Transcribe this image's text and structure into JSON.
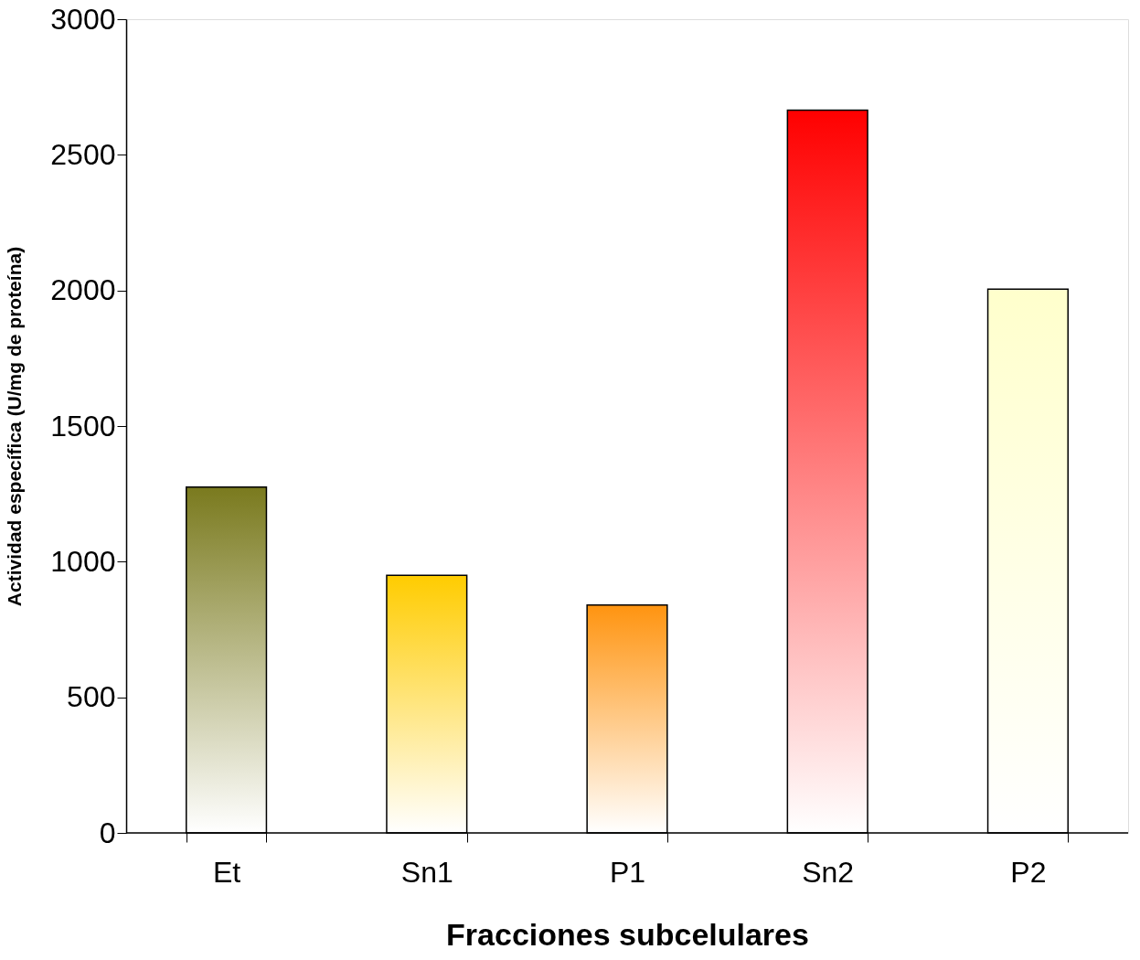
{
  "chart_data": {
    "type": "bar",
    "xlabel": "Fracciones subcelulares",
    "ylabel": "Actividad específica   (U/mg de proteína)",
    "categories": [
      "Et",
      "Sn1",
      "P1",
      "Sn2",
      "P2"
    ],
    "values": [
      1275,
      950,
      840,
      2665,
      2005
    ],
    "colors": [
      "#7a7a1e",
      "#ffcc00",
      "#ff9410",
      "#ff0000",
      "#ffffcc"
    ],
    "ylim": [
      0,
      3000
    ],
    "yticks": [
      0,
      500,
      1000,
      1500,
      2000,
      2500,
      3000
    ],
    "grid": false
  }
}
